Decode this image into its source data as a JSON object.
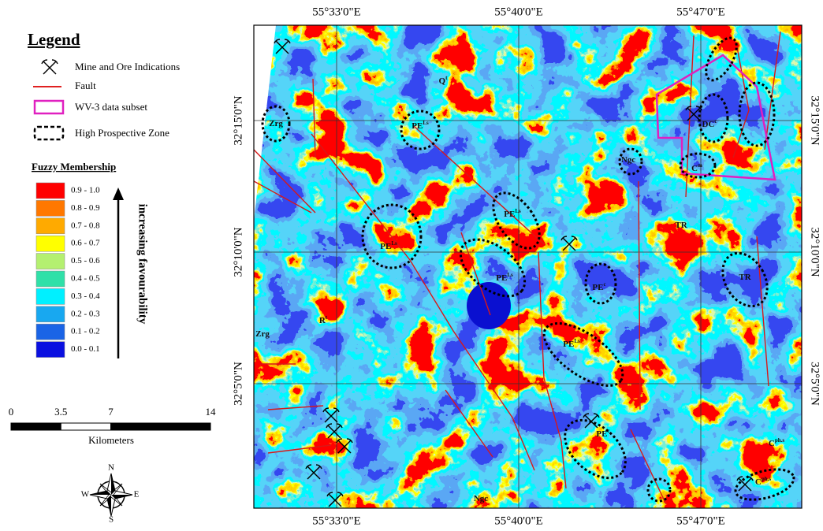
{
  "legend": {
    "title": "Legend",
    "items": [
      {
        "label": "Mine and Ore Indications"
      },
      {
        "label": "Fault"
      },
      {
        "label": "WV-3 data subset"
      },
      {
        "label": "High Prospective Zone"
      }
    ]
  },
  "fuzzy": {
    "title": "Fuzzy Membership",
    "arrow_label": "increasing favourability",
    "classes": [
      {
        "label": "0.9 - 1.0",
        "color": "#ff0000"
      },
      {
        "label": "0.8 - 0.9",
        "color": "#ff7800"
      },
      {
        "label": "0.7 - 0.8",
        "color": "#ffaa00"
      },
      {
        "label": "0.6 - 0.7",
        "color": "#ffff00"
      },
      {
        "label": "0.5 - 0.6",
        "color": "#b4f070"
      },
      {
        "label": "0.4 - 0.5",
        "color": "#30e0a8"
      },
      {
        "label": "0.3 - 0.4",
        "color": "#00f0ff"
      },
      {
        "label": "0.2 - 0.3",
        "color": "#18a8f0"
      },
      {
        "label": "0.1 - 0.2",
        "color": "#1a64e6"
      },
      {
        "label": "0.0 - 0.1",
        "color": "#0a10e0"
      }
    ]
  },
  "scale_bar": {
    "ticks": [
      0,
      3.5,
      7,
      14
    ],
    "unit": "Kilometers"
  },
  "north_arrow": {
    "n": "N",
    "e": "E",
    "s": "S",
    "w": "W"
  },
  "map": {
    "top_labels": [
      "55°33'0\"E",
      "55°40'0\"E",
      "55°47'0\"E"
    ],
    "bottom_labels": [
      "55°33'0\"E",
      "55°40'0\"E",
      "55°47'0\"E"
    ],
    "left_labels": [
      "32°15'0\"N",
      "32°10'0\"N",
      "32°5'0\"N"
    ],
    "right_labels": [
      "32°15'0\"N",
      "32°10'0\"N",
      "32°5'0\"N"
    ],
    "features": [
      {
        "text": "Q",
        "sup": "t"
      },
      {
        "text": "Zrg"
      },
      {
        "text": "PE",
        "sup": "Ls"
      },
      {
        "text": "PE",
        "sup": "Ls"
      },
      {
        "text": "PE",
        "sup": "Ls"
      },
      {
        "text": "PE",
        "sup": "Ls"
      },
      {
        "text": "PE",
        "sup": "c"
      },
      {
        "text": "PE",
        "sup": "Ls"
      },
      {
        "text": "PE",
        "sup": "c"
      },
      {
        "text": "Ngc"
      },
      {
        "text": "Ngc"
      },
      {
        "text": "TR"
      },
      {
        "text": "TR"
      },
      {
        "text": "Zrg"
      },
      {
        "text": "C",
        "sup": "ph.s"
      },
      {
        "text": "C",
        "sup": "ph.s"
      },
      {
        "text": "DC",
        "sup": "c"
      },
      {
        "text": "C",
        "sup": "m"
      },
      {
        "text": "R",
        "sup": "t"
      }
    ]
  }
}
